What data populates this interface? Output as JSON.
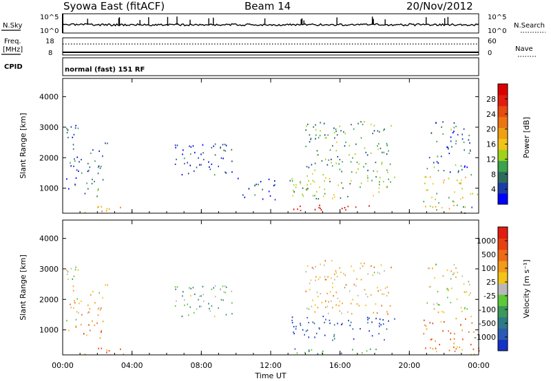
{
  "header": {
    "station": "Syowa East (fitACF)",
    "beam": "Beam 14",
    "date": "20/Nov/2012"
  },
  "top_panels": {
    "nsky_label": "N.Sky",
    "nsky_ticks": [
      "10^5",
      "10^0"
    ],
    "nsearch_label": "N.Search",
    "nsearch_ticks": [
      "10^5",
      "10^0"
    ],
    "freq_label_1": "Freq.",
    "freq_label_2": "[MHz]",
    "freq_ticks": [
      "18",
      "8"
    ],
    "nave_label": "Nave",
    "nave_ticks": [
      "60",
      "0"
    ],
    "cpid_label": "CPID",
    "cpid_text": "normal (fast) 151 RF"
  },
  "chart_data": [
    {
      "type": "heatmap",
      "name": "power",
      "ylabel": "Slant Range [km]",
      "yticks": [
        1000,
        2000,
        3000,
        4000
      ],
      "ylim": [
        180,
        4600
      ],
      "xlim": [
        0,
        24
      ],
      "colorbar_label": "Power [dB]",
      "colorbar_ticks": [
        "28",
        "24",
        "20",
        "16",
        "12",
        "8",
        "4"
      ],
      "colorbar_colors": [
        "#0000ff",
        "#1c3ca8",
        "#2f6b5d",
        "#3aa34b",
        "#9fd21a",
        "#f2c418",
        "#f0a012",
        "#ec7412",
        "#e74b10",
        "#e31c10",
        "#dd0000"
      ],
      "bands": [
        {
          "t": [
            0.0,
            1.2
          ],
          "r": [
            2500,
            3100
          ],
          "level": 0.15
        },
        {
          "t": [
            0.2,
            2.6
          ],
          "r": [
            1300,
            2500
          ],
          "level": 0.15
        },
        {
          "t": [
            0.3,
            2.2
          ],
          "r": [
            750,
            1250
          ],
          "level": 0.25
        },
        {
          "t": [
            0.8,
            4.2
          ],
          "r": [
            200,
            420
          ],
          "level": 0.55
        },
        {
          "t": [
            6.2,
            10.2
          ],
          "r": [
            1450,
            2500
          ],
          "level": 0.12
        },
        {
          "t": [
            10.0,
            12.5
          ],
          "r": [
            600,
            1400
          ],
          "level": 0.12
        },
        {
          "t": [
            13.0,
            19.2
          ],
          "r": [
            650,
            1500
          ],
          "level": 0.38
        },
        {
          "t": [
            13.3,
            18.3
          ],
          "r": [
            230,
            460
          ],
          "level": 0.95
        },
        {
          "t": [
            14.0,
            19.0
          ],
          "r": [
            1500,
            3300
          ],
          "level": 0.3
        },
        {
          "t": [
            20.8,
            23.9
          ],
          "r": [
            300,
            1500
          ],
          "level": 0.45
        },
        {
          "t": [
            21.0,
            23.5
          ],
          "r": [
            1500,
            3200
          ],
          "level": 0.2
        },
        {
          "t": [
            23.0,
            24.0
          ],
          "r": [
            200,
            500
          ],
          "level": 0.3
        }
      ]
    },
    {
      "type": "heatmap",
      "name": "velocity",
      "ylabel": "Slant Range [km]",
      "yticks": [
        1000,
        2000,
        3000,
        4000
      ],
      "ylim": [
        180,
        4600
      ],
      "xlim": [
        0,
        24
      ],
      "xticks": [
        "00:00",
        "04:00",
        "08:00",
        "12:00",
        "16:00",
        "20:00",
        "00:00"
      ],
      "xlabel": "Time UT",
      "colorbar_label": "Velocity [m s⁻¹]",
      "colorbar_ticks": [
        "1000",
        "500",
        "100",
        "25",
        "-25",
        "-100",
        "-500",
        "-1000"
      ],
      "colorbar_colors": [
        "#1432c8",
        "#2a5ab4",
        "#2e7a86",
        "#3a9a5a",
        "#5cc83a",
        "#b8b8b8",
        "#f2c418",
        "#f39a18",
        "#ef6a14",
        "#e8400f",
        "#e31c10"
      ],
      "bands": [
        {
          "t": [
            0.0,
            1.2
          ],
          "r": [
            2500,
            3100
          ],
          "level": 0.45
        },
        {
          "t": [
            0.2,
            2.6
          ],
          "r": [
            1300,
            2500
          ],
          "level": 0.6
        },
        {
          "t": [
            0.3,
            2.4
          ],
          "r": [
            750,
            1250
          ],
          "level": 0.75
        },
        {
          "t": [
            0.8,
            4.2
          ],
          "r": [
            200,
            420
          ],
          "level": 0.78
        },
        {
          "t": [
            6.2,
            10.2
          ],
          "r": [
            1450,
            2500
          ],
          "level": 0.38
        },
        {
          "t": [
            13.0,
            19.2
          ],
          "r": [
            650,
            1500
          ],
          "level": 0.08
        },
        {
          "t": [
            13.3,
            18.3
          ],
          "r": [
            230,
            460
          ],
          "level": 0.3
        },
        {
          "t": [
            14.0,
            19.0
          ],
          "r": [
            1500,
            3300
          ],
          "level": 0.62
        },
        {
          "t": [
            20.8,
            23.9
          ],
          "r": [
            300,
            1500
          ],
          "level": 0.72
        },
        {
          "t": [
            21.0,
            23.5
          ],
          "r": [
            1500,
            3200
          ],
          "level": 0.55
        },
        {
          "t": [
            23.0,
            24.0
          ],
          "r": [
            200,
            500
          ],
          "level": 0.7
        }
      ]
    }
  ]
}
